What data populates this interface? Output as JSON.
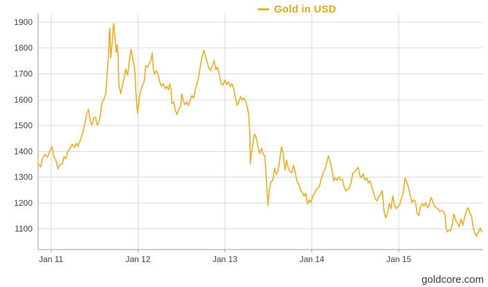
{
  "legend": {
    "symbol": "—",
    "label": "Gold in USD"
  },
  "watermark": "goldcore.com",
  "colors": {
    "line": "#E6B12E",
    "legend_text": "#E3A81E",
    "grid": "#D9D9D9",
    "axis": "#9B9B9B",
    "tick_text": "#404040",
    "background": "#FFFFFF"
  },
  "chart_data": {
    "type": "line",
    "title": "Gold in USD",
    "legend_position": "top-center",
    "grid": true,
    "xlabel": "",
    "ylabel": "",
    "x_unit": "decimal_year",
    "y_unit": "USD per troy ounce",
    "xlim": [
      2010.85,
      2015.97
    ],
    "ylim": [
      1020,
      1932
    ],
    "x_ticks": [
      {
        "value": 2011,
        "label": "Jan 11"
      },
      {
        "value": 2012,
        "label": "Jan 12"
      },
      {
        "value": 2013,
        "label": "Jan 13"
      },
      {
        "value": 2014,
        "label": "Jan 14"
      },
      {
        "value": 2015,
        "label": "Jan 15"
      }
    ],
    "y_ticks": [
      1100,
      1200,
      1300,
      1400,
      1500,
      1600,
      1700,
      1800,
      1900
    ],
    "series": [
      {
        "name": "Gold in USD",
        "color": "#E6B12E",
        "points": [
          [
            2010.85,
            1352
          ],
          [
            2010.88,
            1340
          ],
          [
            2010.9,
            1372
          ],
          [
            2010.93,
            1388
          ],
          [
            2010.96,
            1378
          ],
          [
            2010.99,
            1406
          ],
          [
            2011.01,
            1418
          ],
          [
            2011.03,
            1382
          ],
          [
            2011.06,
            1360
          ],
          [
            2011.08,
            1332
          ],
          [
            2011.1,
            1348
          ],
          [
            2011.13,
            1352
          ],
          [
            2011.15,
            1380
          ],
          [
            2011.17,
            1372
          ],
          [
            2011.19,
            1398
          ],
          [
            2011.22,
            1412
          ],
          [
            2011.24,
            1428
          ],
          [
            2011.27,
            1415
          ],
          [
            2011.29,
            1432
          ],
          [
            2011.31,
            1420
          ],
          [
            2011.33,
            1438
          ],
          [
            2011.35,
            1458
          ],
          [
            2011.37,
            1478
          ],
          [
            2011.39,
            1512
          ],
          [
            2011.41,
            1546
          ],
          [
            2011.43,
            1563
          ],
          [
            2011.45,
            1516
          ],
          [
            2011.47,
            1502
          ],
          [
            2011.49,
            1528
          ],
          [
            2011.51,
            1532
          ],
          [
            2011.53,
            1502
          ],
          [
            2011.55,
            1512
          ],
          [
            2011.57,
            1548
          ],
          [
            2011.59,
            1594
          ],
          [
            2011.61,
            1602
          ],
          [
            2011.63,
            1628
          ],
          [
            2011.645,
            1702
          ],
          [
            2011.655,
            1742
          ],
          [
            2011.663,
            1785
          ],
          [
            2011.67,
            1862
          ],
          [
            2011.676,
            1878
          ],
          [
            2011.685,
            1762
          ],
          [
            2011.695,
            1792
          ],
          [
            2011.705,
            1828
          ],
          [
            2011.714,
            1882
          ],
          [
            2011.72,
            1895
          ],
          [
            2011.73,
            1858
          ],
          [
            2011.74,
            1816
          ],
          [
            2011.75,
            1782
          ],
          [
            2011.76,
            1814
          ],
          [
            2011.77,
            1778
          ],
          [
            2011.78,
            1656
          ],
          [
            2011.79,
            1642
          ],
          [
            2011.8,
            1622
          ],
          [
            2011.82,
            1655
          ],
          [
            2011.84,
            1683
          ],
          [
            2011.86,
            1718
          ],
          [
            2011.88,
            1694
          ],
          [
            2011.9,
            1752
          ],
          [
            2011.92,
            1795
          ],
          [
            2011.94,
            1756
          ],
          [
            2011.96,
            1722
          ],
          [
            2011.97,
            1666
          ],
          [
            2011.98,
            1606
          ],
          [
            2011.995,
            1548
          ],
          [
            2012.02,
            1618
          ],
          [
            2012.045,
            1652
          ],
          [
            2012.07,
            1668
          ],
          [
            2012.09,
            1732
          ],
          [
            2012.11,
            1726
          ],
          [
            2012.13,
            1742
          ],
          [
            2012.15,
            1754
          ],
          [
            2012.163,
            1781
          ],
          [
            2012.175,
            1722
          ],
          [
            2012.19,
            1698
          ],
          [
            2012.21,
            1712
          ],
          [
            2012.23,
            1700
          ],
          [
            2012.25,
            1668
          ],
          [
            2012.27,
            1652
          ],
          [
            2012.29,
            1663
          ],
          [
            2012.31,
            1642
          ],
          [
            2012.33,
            1652
          ],
          [
            2012.35,
            1638
          ],
          [
            2012.365,
            1662
          ],
          [
            2012.38,
            1640
          ],
          [
            2012.39,
            1585
          ],
          [
            2012.41,
            1592
          ],
          [
            2012.43,
            1558
          ],
          [
            2012.45,
            1542
          ],
          [
            2012.47,
            1564
          ],
          [
            2012.49,
            1574
          ],
          [
            2012.505,
            1622
          ],
          [
            2012.52,
            1598
          ],
          [
            2012.54,
            1580
          ],
          [
            2012.56,
            1592
          ],
          [
            2012.58,
            1578
          ],
          [
            2012.6,
            1598
          ],
          [
            2012.62,
            1616
          ],
          [
            2012.64,
            1606
          ],
          [
            2012.66,
            1642
          ],
          [
            2012.68,
            1662
          ],
          [
            2012.7,
            1692
          ],
          [
            2012.72,
            1736
          ],
          [
            2012.74,
            1772
          ],
          [
            2012.758,
            1790
          ],
          [
            2012.775,
            1766
          ],
          [
            2012.795,
            1746
          ],
          [
            2012.815,
            1722
          ],
          [
            2012.835,
            1712
          ],
          [
            2012.855,
            1732
          ],
          [
            2012.875,
            1752
          ],
          [
            2012.895,
            1716
          ],
          [
            2012.915,
            1726
          ],
          [
            2012.935,
            1696
          ],
          [
            2012.955,
            1662
          ],
          [
            2012.975,
            1656
          ],
          [
            2013.0,
            1676
          ],
          [
            2013.02,
            1658
          ],
          [
            2013.04,
            1668
          ],
          [
            2013.06,
            1650
          ],
          [
            2013.08,
            1662
          ],
          [
            2013.1,
            1642
          ],
          [
            2013.12,
            1606
          ],
          [
            2013.14,
            1578
          ],
          [
            2013.16,
            1592
          ],
          [
            2013.18,
            1612
          ],
          [
            2013.2,
            1598
          ],
          [
            2013.22,
            1606
          ],
          [
            2013.24,
            1592
          ],
          [
            2013.26,
            1566
          ],
          [
            2013.275,
            1536
          ],
          [
            2013.285,
            1478
          ],
          [
            2013.292,
            1352
          ],
          [
            2013.3,
            1382
          ],
          [
            2013.32,
            1426
          ],
          [
            2013.34,
            1468
          ],
          [
            2013.36,
            1452
          ],
          [
            2013.38,
            1416
          ],
          [
            2013.4,
            1392
          ],
          [
            2013.42,
            1412
          ],
          [
            2013.44,
            1388
          ],
          [
            2013.46,
            1382
          ],
          [
            2013.475,
            1292
          ],
          [
            2013.488,
            1232
          ],
          [
            2013.496,
            1192
          ],
          [
            2013.51,
            1252
          ],
          [
            2013.53,
            1282
          ],
          [
            2013.55,
            1288
          ],
          [
            2013.57,
            1334
          ],
          [
            2013.59,
            1312
          ],
          [
            2013.61,
            1322
          ],
          [
            2013.63,
            1368
          ],
          [
            2013.65,
            1418
          ],
          [
            2013.67,
            1392
          ],
          [
            2013.69,
            1328
          ],
          [
            2013.71,
            1366
          ],
          [
            2013.73,
            1332
          ],
          [
            2013.75,
            1322
          ],
          [
            2013.77,
            1318
          ],
          [
            2013.79,
            1346
          ],
          [
            2013.81,
            1316
          ],
          [
            2013.83,
            1282
          ],
          [
            2013.85,
            1272
          ],
          [
            2013.87,
            1248
          ],
          [
            2013.89,
            1242
          ],
          [
            2013.91,
            1226
          ],
          [
            2013.93,
            1238
          ],
          [
            2013.95,
            1196
          ],
          [
            2013.97,
            1212
          ],
          [
            2013.99,
            1202
          ],
          [
            2014.01,
            1226
          ],
          [
            2014.03,
            1238
          ],
          [
            2014.05,
            1252
          ],
          [
            2014.07,
            1258
          ],
          [
            2014.09,
            1268
          ],
          [
            2014.11,
            1296
          ],
          [
            2014.13,
            1318
          ],
          [
            2014.15,
            1328
          ],
          [
            2014.17,
            1355
          ],
          [
            2014.19,
            1382
          ],
          [
            2014.21,
            1360
          ],
          [
            2014.23,
            1330
          ],
          [
            2014.25,
            1286
          ],
          [
            2014.27,
            1298
          ],
          [
            2014.29,
            1288
          ],
          [
            2014.31,
            1302
          ],
          [
            2014.33,
            1290
          ],
          [
            2014.35,
            1292
          ],
          [
            2014.37,
            1262
          ],
          [
            2014.39,
            1248
          ],
          [
            2014.41,
            1252
          ],
          [
            2014.43,
            1258
          ],
          [
            2014.45,
            1278
          ],
          [
            2014.47,
            1315
          ],
          [
            2014.49,
            1320
          ],
          [
            2014.51,
            1328
          ],
          [
            2014.53,
            1339
          ],
          [
            2014.55,
            1308
          ],
          [
            2014.57,
            1298
          ],
          [
            2014.59,
            1312
          ],
          [
            2014.61,
            1288
          ],
          [
            2014.63,
            1298
          ],
          [
            2014.65,
            1278
          ],
          [
            2014.67,
            1286
          ],
          [
            2014.69,
            1262
          ],
          [
            2014.71,
            1238
          ],
          [
            2014.73,
            1216
          ],
          [
            2014.75,
            1208
          ],
          [
            2014.77,
            1226
          ],
          [
            2014.79,
            1232
          ],
          [
            2014.81,
            1248
          ],
          [
            2014.83,
            1168
          ],
          [
            2014.85,
            1142
          ],
          [
            2014.87,
            1162
          ],
          [
            2014.89,
            1198
          ],
          [
            2014.91,
            1178
          ],
          [
            2014.93,
            1228
          ],
          [
            2014.95,
            1192
          ],
          [
            2014.97,
            1178
          ],
          [
            2014.99,
            1186
          ],
          [
            2015.01,
            1192
          ],
          [
            2015.03,
            1218
          ],
          [
            2015.05,
            1238
          ],
          [
            2015.07,
            1296
          ],
          [
            2015.09,
            1282
          ],
          [
            2015.11,
            1262
          ],
          [
            2015.13,
            1232
          ],
          [
            2015.15,
            1202
          ],
          [
            2015.17,
            1212
          ],
          [
            2015.19,
            1208
          ],
          [
            2015.21,
            1162
          ],
          [
            2015.23,
            1152
          ],
          [
            2015.25,
            1186
          ],
          [
            2015.27,
            1198
          ],
          [
            2015.29,
            1188
          ],
          [
            2015.31,
            1202
          ],
          [
            2015.33,
            1182
          ],
          [
            2015.35,
            1192
          ],
          [
            2015.37,
            1222
          ],
          [
            2015.39,
            1206
          ],
          [
            2015.41,
            1188
          ],
          [
            2015.43,
            1182
          ],
          [
            2015.45,
            1178
          ],
          [
            2015.47,
            1168
          ],
          [
            2015.49,
            1172
          ],
          [
            2015.51,
            1168
          ],
          [
            2015.53,
            1156
          ],
          [
            2015.545,
            1102
          ],
          [
            2015.558,
            1088
          ],
          [
            2015.575,
            1096
          ],
          [
            2015.595,
            1092
          ],
          [
            2015.615,
            1118
          ],
          [
            2015.635,
            1158
          ],
          [
            2015.655,
            1134
          ],
          [
            2015.675,
            1122
          ],
          [
            2015.695,
            1108
          ],
          [
            2015.715,
            1138
          ],
          [
            2015.735,
            1114
          ],
          [
            2015.755,
            1142
          ],
          [
            2015.775,
            1168
          ],
          [
            2015.795,
            1182
          ],
          [
            2015.815,
            1162
          ],
          [
            2015.835,
            1152
          ],
          [
            2015.855,
            1108
          ],
          [
            2015.875,
            1082
          ],
          [
            2015.895,
            1072
          ],
          [
            2015.915,
            1088
          ],
          [
            2015.935,
            1102
          ],
          [
            2015.955,
            1088
          ]
        ]
      }
    ]
  }
}
